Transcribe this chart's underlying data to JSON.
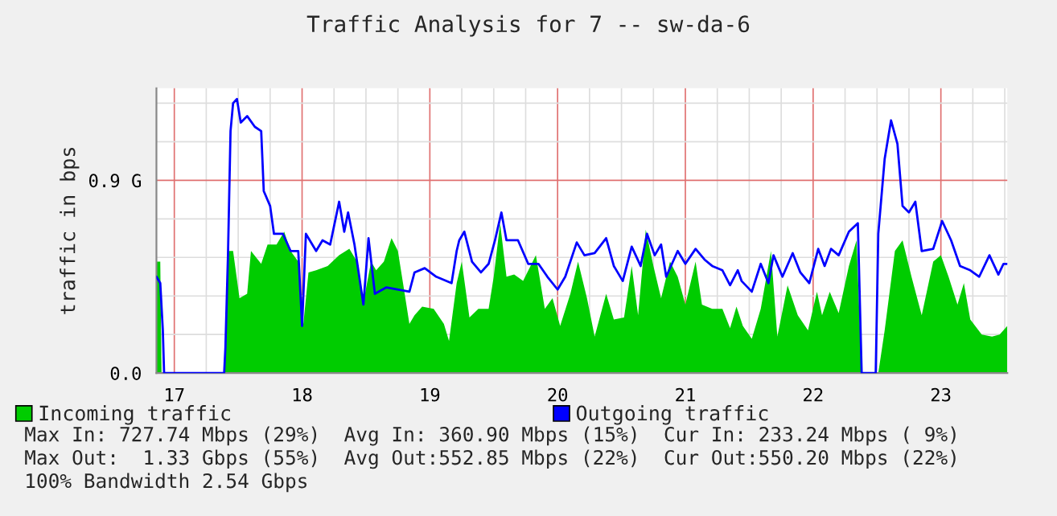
{
  "chart_data": {
    "type": "line",
    "title": "Traffic Analysis for 7 -- sw-da-6",
    "ylabel": "traffic in bps",
    "xlim": [
      16.86,
      23.52
    ],
    "xticks": [
      17,
      {
        "value": 17.25,
        "label": null
      },
      {
        "value": 17.5,
        "label": null
      },
      {
        "value": 17.75,
        "label": null
      },
      18,
      {
        "value": 18.25,
        "label": null
      },
      {
        "value": 18.5,
        "label": null
      },
      {
        "value": 18.75,
        "label": null
      },
      19,
      {
        "value": 19.25,
        "label": null
      },
      {
        "value": 19.5,
        "label": null
      },
      {
        "value": 19.75,
        "label": null
      },
      20,
      {
        "value": 20.25,
        "label": null
      },
      {
        "value": 20.5,
        "label": null
      },
      {
        "value": 20.75,
        "label": null
      },
      21,
      {
        "value": 21.25,
        "label": null
      },
      {
        "value": 21.5,
        "label": null
      },
      {
        "value": 21.75,
        "label": null
      },
      22,
      {
        "value": 22.25,
        "label": null
      },
      {
        "value": 22.5,
        "label": null
      },
      {
        "value": 22.75,
        "label": null
      },
      23,
      {
        "value": 23.25,
        "label": null
      },
      {
        "value": 23.5,
        "label": null
      }
    ],
    "ylim": [
      0,
      1.33
    ],
    "yticks": [
      {
        "value": 0,
        "label": "0.0"
      },
      {
        "value": 0.18,
        "label": null
      },
      {
        "value": 0.36,
        "label": null
      },
      {
        "value": 0.54,
        "label": null
      },
      {
        "value": 0.72,
        "label": null
      },
      {
        "value": 0.9,
        "label": "0.9 G"
      },
      {
        "value": 1.08,
        "label": null
      },
      {
        "value": 1.26,
        "label": null
      }
    ],
    "grid": true,
    "legend": "bottom",
    "series": [
      {
        "name": "Incoming traffic",
        "type": "area",
        "color": "#00cc00",
        "x": [
          16.86,
          16.89,
          16.9,
          17.39,
          17.42,
          17.46,
          17.51,
          17.57,
          17.6,
          17.68,
          17.73,
          17.8,
          17.86,
          17.91,
          17.97,
          18.01,
          18.05,
          18.11,
          18.2,
          18.29,
          18.37,
          18.43,
          18.48,
          18.54,
          18.58,
          18.64,
          18.7,
          18.75,
          18.79,
          18.84,
          18.88,
          18.94,
          19.03,
          19.11,
          19.15,
          19.21,
          19.25,
          19.31,
          19.38,
          19.46,
          19.5,
          19.55,
          19.6,
          19.66,
          19.73,
          19.83,
          19.9,
          19.96,
          20.02,
          20.1,
          20.16,
          20.23,
          20.29,
          20.38,
          20.44,
          20.52,
          20.58,
          20.63,
          20.69,
          20.75,
          20.81,
          20.88,
          20.94,
          21.0,
          21.08,
          21.13,
          21.21,
          21.29,
          21.35,
          21.4,
          21.45,
          21.52,
          21.59,
          21.67,
          21.72,
          21.8,
          21.88,
          21.96,
          22.03,
          22.07,
          22.13,
          22.2,
          22.28,
          22.34,
          22.38,
          22.51,
          22.56,
          22.64,
          22.7,
          22.77,
          22.85,
          22.94,
          23.0,
          23.06,
          23.13,
          23.18,
          23.23,
          23.32,
          23.4,
          23.46,
          23.52
        ],
        "values": [
          0.52,
          0.52,
          0,
          0,
          0.57,
          0.57,
          0.35,
          0.37,
          0.57,
          0.51,
          0.6,
          0.6,
          0.66,
          0.57,
          0.52,
          0.23,
          0.47,
          0.48,
          0.5,
          0.55,
          0.58,
          0.52,
          0.33,
          0.52,
          0.48,
          0.52,
          0.63,
          0.57,
          0.42,
          0.23,
          0.27,
          0.31,
          0.3,
          0.23,
          0.15,
          0.42,
          0.52,
          0.26,
          0.3,
          0.3,
          0.45,
          0.7,
          0.45,
          0.46,
          0.43,
          0.55,
          0.3,
          0.35,
          0.22,
          0.37,
          0.52,
          0.35,
          0.17,
          0.37,
          0.25,
          0.26,
          0.5,
          0.27,
          0.67,
          0.5,
          0.35,
          0.52,
          0.45,
          0.32,
          0.52,
          0.32,
          0.3,
          0.3,
          0.21,
          0.31,
          0.22,
          0.16,
          0.3,
          0.57,
          0.17,
          0.41,
          0.27,
          0.2,
          0.38,
          0.27,
          0.38,
          0.28,
          0.5,
          0.62,
          0,
          0,
          0.2,
          0.57,
          0.62,
          0.45,
          0.27,
          0.52,
          0.55,
          0.45,
          0.32,
          0.42,
          0.25,
          0.18,
          0.17,
          0.18,
          0.22
        ]
      },
      {
        "name": "Outgoing traffic",
        "color": "#0000ff",
        "x": [
          16.86,
          16.89,
          16.91,
          16.92,
          17.39,
          17.4,
          17.42,
          17.44,
          17.46,
          17.49,
          17.52,
          17.57,
          17.63,
          17.68,
          17.7,
          17.75,
          17.78,
          17.85,
          17.91,
          17.97,
          18.0,
          18.03,
          18.11,
          18.16,
          18.22,
          18.29,
          18.33,
          18.36,
          18.41,
          18.48,
          18.52,
          18.57,
          18.66,
          18.84,
          18.88,
          18.96,
          19.05,
          19.17,
          19.21,
          19.23,
          19.27,
          19.33,
          19.4,
          19.46,
          19.51,
          19.56,
          19.6,
          19.69,
          19.77,
          19.85,
          19.92,
          20.0,
          20.06,
          20.15,
          20.21,
          20.29,
          20.38,
          20.44,
          20.51,
          20.58,
          20.65,
          20.7,
          20.76,
          20.81,
          20.85,
          20.94,
          21.0,
          21.08,
          21.15,
          21.21,
          21.29,
          21.35,
          21.41,
          21.44,
          21.52,
          21.59,
          21.65,
          21.69,
          21.76,
          21.84,
          21.9,
          21.97,
          22.04,
          22.09,
          22.14,
          22.2,
          22.28,
          22.35,
          22.38,
          22.49,
          22.51,
          22.56,
          22.61,
          22.66,
          22.7,
          22.75,
          22.8,
          22.85,
          22.94,
          23.01,
          23.08,
          23.15,
          23.23,
          23.3,
          23.38,
          23.45,
          23.49,
          23.52
        ],
        "values": [
          0.45,
          0.42,
          0.2,
          0,
          0,
          0.12,
          0.55,
          1.13,
          1.26,
          1.28,
          1.17,
          1.2,
          1.15,
          1.13,
          0.85,
          0.78,
          0.65,
          0.65,
          0.57,
          0.57,
          0.22,
          0.65,
          0.57,
          0.62,
          0.6,
          0.8,
          0.66,
          0.75,
          0.6,
          0.32,
          0.63,
          0.37,
          0.4,
          0.38,
          0.47,
          0.49,
          0.45,
          0.42,
          0.57,
          0.62,
          0.66,
          0.52,
          0.47,
          0.51,
          0.62,
          0.75,
          0.62,
          0.62,
          0.51,
          0.51,
          0.45,
          0.39,
          0.45,
          0.61,
          0.55,
          0.56,
          0.63,
          0.5,
          0.43,
          0.59,
          0.5,
          0.65,
          0.55,
          0.6,
          0.45,
          0.57,
          0.51,
          0.58,
          0.53,
          0.5,
          0.48,
          0.41,
          0.48,
          0.43,
          0.38,
          0.51,
          0.42,
          0.55,
          0.45,
          0.56,
          0.47,
          0.42,
          0.58,
          0.5,
          0.58,
          0.55,
          0.66,
          0.7,
          0,
          0,
          0.65,
          1.0,
          1.18,
          1.07,
          0.78,
          0.75,
          0.8,
          0.57,
          0.58,
          0.71,
          0.62,
          0.5,
          0.48,
          0.45,
          0.55,
          0.46,
          0.51,
          0.51
        ]
      }
    ],
    "annotations": [
      "Max In: 727.74 Mbps (29%)  Avg In: 360.90 Mbps (15%)  Cur In: 233.24 Mbps ( 9%)",
      "Max Out:  1.33 Gbps (55%)  Avg Out:552.85 Mbps (22%)  Cur Out:550.20 Mbps (22%)",
      "100% Bandwidth 2.54 Gbps"
    ]
  }
}
